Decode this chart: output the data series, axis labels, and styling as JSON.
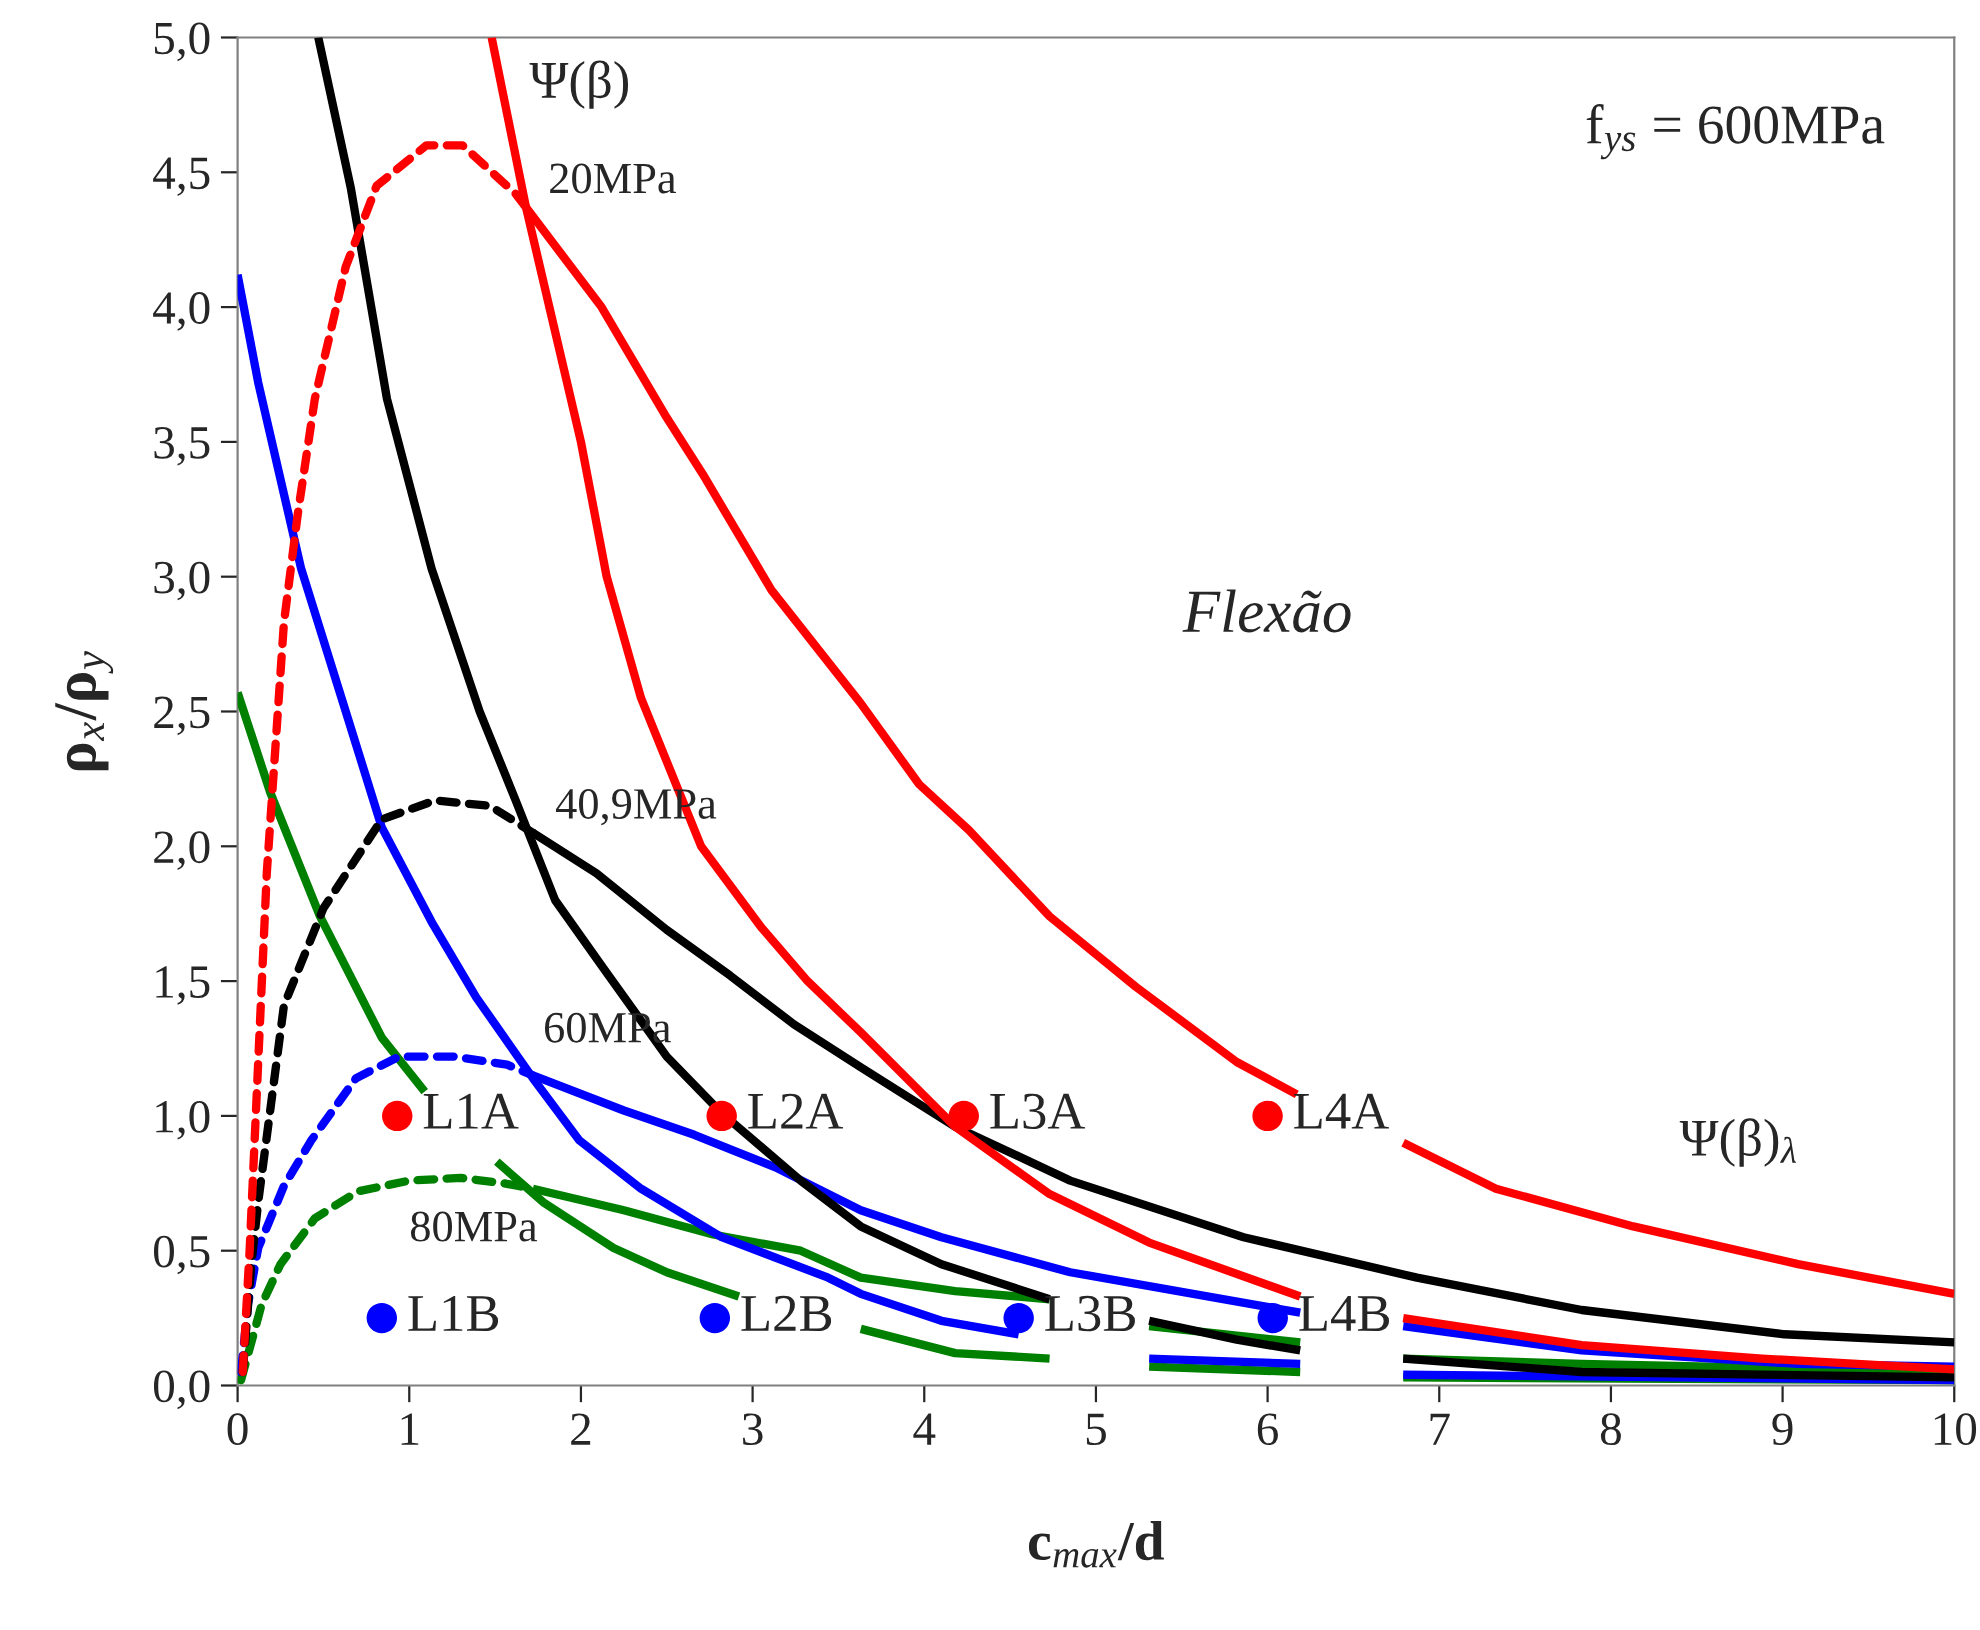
{
  "chart_data": {
    "type": "line",
    "xlabel": "c$_{max}$/d",
    "ylabel": "ρ$_{x}$/ρ$_{y}$",
    "xlim": [
      0,
      10
    ],
    "ylim": [
      0,
      5
    ],
    "xticks": [
      0,
      1,
      2,
      3,
      4,
      5,
      6,
      7,
      8,
      9,
      10
    ],
    "yticks": [
      {
        "value": 0,
        "label": "0,0"
      },
      {
        "value": 0.5,
        "label": "0,5"
      },
      {
        "value": 1,
        "label": "1,0"
      },
      {
        "value": 1.5,
        "label": "1,5"
      },
      {
        "value": 2,
        "label": "2,0"
      },
      {
        "value": 2.5,
        "label": "2,5"
      },
      {
        "value": 3,
        "label": "3,0"
      },
      {
        "value": 3.5,
        "label": "3,5"
      },
      {
        "value": 4,
        "label": "4,0"
      },
      {
        "value": 4.5,
        "label": "4,5"
      },
      {
        "value": 5,
        "label": "5,0"
      }
    ],
    "grid": false,
    "legend": false,
    "series": [
      {
        "line_style": "solid",
        "color": "#ff0000",
        "x": [
          1.48,
          1.68,
          2.0,
          2.15,
          2.35,
          2.7,
          3.05,
          3.32,
          3.63,
          4.18,
          4.73,
          5.31,
          6.19,
          6.5,
          6.79,
          7.83,
          8.88,
          10.0
        ],
        "values": [
          5.0,
          4.37,
          3.5,
          3.0,
          2.55,
          2.0,
          1.7,
          1.5,
          1.31,
          0.96,
          0.71,
          0.53,
          0.33,
          null,
          0.25,
          0.15,
          0.1,
          0.06
        ]
      },
      {
        "line_style": "solid",
        "color": "#ff0000",
        "x": [
          1.68,
          2.12,
          2.49,
          2.71,
          3.11,
          3.63,
          3.97,
          4.26,
          4.73,
          5.23,
          5.82,
          6.17,
          6.5,
          6.79,
          7.33,
          8.13,
          9.09,
          10.0
        ],
        "values": [
          4.37,
          4.0,
          3.6,
          3.38,
          2.95,
          2.53,
          2.23,
          2.06,
          1.74,
          1.48,
          1.2,
          1.08,
          null,
          0.9,
          0.73,
          0.59,
          0.45,
          0.34
        ]
      },
      {
        "line_style": "dashed",
        "color": "#ff0000",
        "x": [
          0.03,
          0.07,
          0.12,
          0.17,
          0.27,
          0.35,
          0.45,
          0.63,
          0.81,
          1.1,
          1.31,
          1.62,
          1.68
        ],
        "values": [
          0.05,
          0.5,
          1.2,
          1.9,
          2.83,
          3.23,
          3.66,
          4.15,
          4.45,
          4.6,
          4.6,
          4.42,
          4.37
        ]
      },
      {
        "line_style": "solid",
        "color": "#000000",
        "x": [
          0.47,
          0.66,
          0.87,
          1.13,
          1.41,
          1.62,
          1.85,
          2.14,
          2.5,
          2.82,
          3.28,
          3.63,
          4.1,
          4.73,
          5.0,
          5.31,
          5.82,
          6.19,
          6.5,
          6.79,
          7.83,
          10.0
        ],
        "values": [
          5.0,
          4.44,
          3.66,
          3.03,
          2.5,
          2.17,
          1.8,
          1.54,
          1.22,
          1.01,
          0.76,
          0.59,
          0.45,
          0.32,
          null,
          0.24,
          0.17,
          0.13,
          null,
          0.1,
          0.05,
          0.03
        ]
      },
      {
        "line_style": "solid",
        "color": "#000000",
        "x": [
          1.72,
          2.09,
          2.5,
          2.87,
          3.24,
          3.63,
          4.18,
          4.85,
          5.86,
          6.87,
          7.83,
          9.01,
          10.0
        ],
        "values": [
          2.05,
          1.9,
          1.69,
          1.52,
          1.34,
          1.18,
          0.96,
          0.76,
          0.55,
          0.4,
          0.28,
          0.19,
          0.16
        ]
      },
      {
        "line_style": "dashed",
        "color": "#000000",
        "x": [
          0.03,
          0.08,
          0.12,
          0.27,
          0.5,
          0.84,
          1.15,
          1.47,
          1.72
        ],
        "values": [
          0.05,
          0.45,
          0.68,
          1.41,
          1.77,
          2.1,
          2.17,
          2.15,
          2.05
        ]
      },
      {
        "line_style": "solid",
        "color": "#0000ff",
        "x": [
          0.0,
          0.12,
          0.37,
          0.63,
          0.84,
          1.13,
          1.39,
          1.72,
          1.99,
          2.35,
          2.82,
          3.44,
          3.63,
          4.1,
          4.55,
          5.0,
          5.31,
          6.19,
          6.5,
          6.79,
          10.0
        ],
        "values": [
          4.12,
          3.72,
          3.03,
          2.5,
          2.07,
          1.72,
          1.44,
          1.14,
          0.91,
          0.73,
          0.55,
          0.4,
          0.34,
          0.24,
          0.19,
          null,
          0.1,
          0.08,
          null,
          0.04,
          0.02
        ]
      },
      {
        "line_style": "solid",
        "color": "#0000ff",
        "x": [
          1.72,
          2.25,
          2.66,
          3.13,
          3.63,
          4.1,
          4.85,
          6.19,
          6.5,
          6.79,
          7.83,
          9.09,
          10.0
        ],
        "values": [
          1.15,
          1.02,
          0.93,
          0.81,
          0.65,
          0.55,
          0.42,
          0.27,
          null,
          0.22,
          0.13,
          0.08,
          0.07
        ]
      },
      {
        "line_style": "dashed",
        "color": "#0000ff",
        "x": [
          0.02,
          0.06,
          0.12,
          0.27,
          0.43,
          0.69,
          0.94,
          1.26,
          1.57,
          1.72
        ],
        "values": [
          0.05,
          0.3,
          0.51,
          0.74,
          0.91,
          1.14,
          1.22,
          1.22,
          1.19,
          1.15
        ]
      },
      {
        "line_style": "solid",
        "color": "#008000",
        "x": [
          0.0,
          0.19,
          0.48,
          0.84,
          1.09,
          1.3,
          1.51,
          1.78,
          2.19,
          2.5,
          2.92,
          3.2,
          3.63,
          4.18,
          4.73,
          5.0,
          5.31,
          6.19,
          6.5,
          6.79,
          10.0
        ],
        "values": [
          2.57,
          2.2,
          1.74,
          1.29,
          1.09,
          null,
          0.83,
          0.68,
          0.51,
          0.42,
          0.33,
          null,
          0.21,
          0.12,
          0.1,
          null,
          0.07,
          0.05,
          null,
          0.03,
          0.02
        ]
      },
      {
        "line_style": "solid",
        "color": "#008000",
        "x": [
          1.72,
          2.25,
          2.77,
          3.28,
          3.63,
          4.18,
          4.73,
          5.0,
          5.31,
          6.19,
          6.5,
          6.79,
          7.83,
          10.0
        ],
        "values": [
          0.73,
          0.65,
          0.56,
          0.5,
          0.4,
          0.35,
          0.32,
          null,
          0.22,
          0.16,
          null,
          0.1,
          0.08,
          0.05
        ]
      },
      {
        "line_style": "dashed",
        "color": "#008000",
        "x": [
          0.02,
          0.14,
          0.25,
          0.45,
          0.7,
          1.0,
          1.3,
          1.55,
          1.72
        ],
        "values": [
          0.02,
          0.3,
          0.45,
          0.62,
          0.72,
          0.76,
          0.77,
          0.75,
          0.73
        ]
      },
      {
        "type": "scatter",
        "marker": "circle",
        "color": "#ff0000",
        "x": [
          0.93,
          2.82,
          4.23,
          6.0
        ],
        "values": [
          1.0,
          1.0,
          1.0,
          1.0
        ]
      },
      {
        "type": "scatter",
        "marker": "circle",
        "color": "#0000ff",
        "x": [
          0.84,
          2.78,
          4.55,
          6.03
        ],
        "values": [
          0.25,
          0.25,
          0.25,
          0.25
        ]
      }
    ],
    "annotations": [
      "Ψ(β)",
      {
        "text": "20MPa",
        "x": 1.68,
        "y": 4.37
      },
      {
        "text": "40,9MPa",
        "x": 1.72,
        "y": 2.05
      },
      {
        "text": "60MPa",
        "x": 1.65,
        "y": 1.22
      },
      "80MPa",
      "Ψ(β)$_{λ}$",
      {
        "text": "L1A",
        "x": 0.93,
        "y": 1.0
      },
      {
        "text": "L2A",
        "x": 2.82,
        "y": 1.0
      },
      {
        "text": "L3A",
        "x": 4.23,
        "y": 1.0
      },
      {
        "text": "L4A",
        "x": 6.0,
        "y": 1.0
      },
      {
        "text": "L1B",
        "x": 0.84,
        "y": 0.25
      },
      {
        "text": "L2B",
        "x": 2.78,
        "y": 0.25
      },
      {
        "text": "L3B",
        "x": 4.55,
        "y": 0.25
      },
      {
        "text": "L4B",
        "x": 6.03,
        "y": 0.25
      },
      "Flexão",
      "f$_{ys}$ = 600MPa"
    ]
  }
}
